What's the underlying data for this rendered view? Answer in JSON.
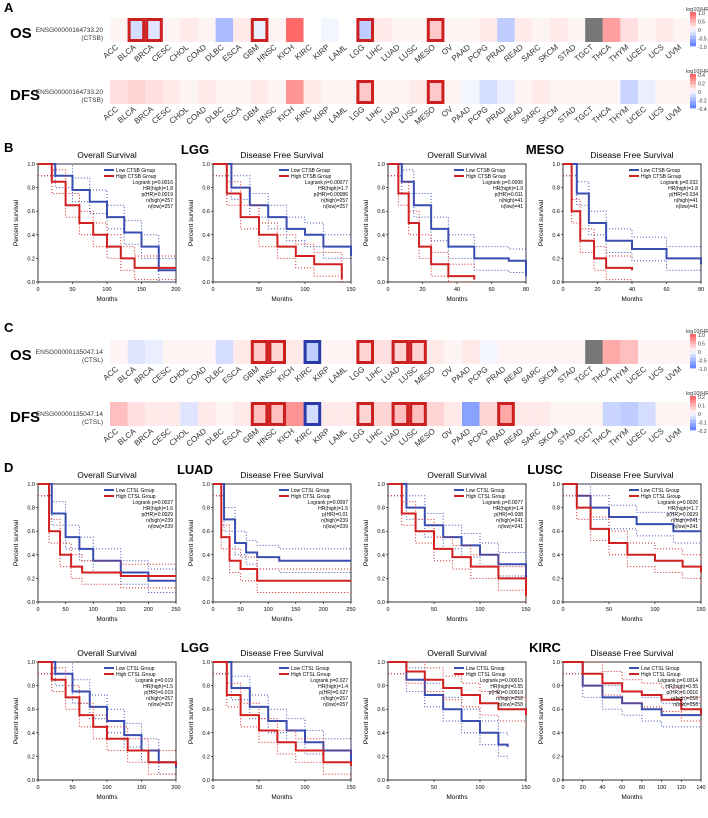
{
  "cancers": [
    "ACC",
    "BLCA",
    "BRCA",
    "CESC",
    "CHOL",
    "COAD",
    "DLBC",
    "ESCA",
    "GBM",
    "HNSC",
    "KICH",
    "KIRC",
    "KIRP",
    "LAML",
    "LGG",
    "LIHC",
    "LUAD",
    "LUSC",
    "MESO",
    "OV",
    "PAAD",
    "PCPG",
    "PRAD",
    "READ",
    "SARC",
    "SKCM",
    "STAD",
    "TGCT",
    "THCA",
    "THYM",
    "UCEC",
    "UCS",
    "UVM"
  ],
  "panels": [
    {
      "letter": "A",
      "y": 0
    },
    {
      "letter": "B",
      "y": 142
    },
    {
      "letter": "C",
      "y": 322
    },
    {
      "letter": "D",
      "y": 462
    }
  ],
  "heatmaps": [
    {
      "id": "A-OS",
      "row_label": "OS",
      "gene_id": "ENSG00000164733.20",
      "gene": "(CTSB)",
      "values": [
        0.05,
        -0.2,
        -0.15,
        0.05,
        0.1,
        0.05,
        -0.4,
        0.1,
        -0.1,
        0.05,
        0.7,
        0.0,
        -0.05,
        0.0,
        -0.3,
        0.1,
        0.05,
        0.05,
        0.25,
        0.05,
        0.05,
        0.1,
        -0.3,
        0.1,
        0.05,
        0.1,
        0.05,
        "na",
        0.45,
        0.15,
        0.05,
        0.1,
        0.05
      ],
      "bold": [
        1,
        2,
        8,
        14,
        18
      ],
      "bold_color": "#cc1f1f",
      "scale_ticks": [
        "1.0",
        "0.5",
        "0",
        "-0.5",
        "-1.0"
      ],
      "scale_title": "log10(HR)"
    },
    {
      "id": "A-DFS",
      "row_label": "DFS",
      "gene_id": "ENSG00000164733.20",
      "gene": "(CTSB)",
      "values": [
        0.15,
        0.2,
        0.15,
        0.1,
        0.05,
        0.1,
        0.05,
        0.05,
        0.1,
        0.05,
        0.5,
        0.1,
        0.05,
        0.05,
        0.25,
        0.05,
        0.05,
        0.1,
        0.25,
        0.05,
        -0.05,
        -0.2,
        -0.1,
        0.05,
        0.1,
        0.05,
        0.05,
        0.05,
        0.05,
        -0.25,
        -0.1,
        0.05,
        0.05
      ],
      "bold": [
        14,
        18
      ],
      "bold_color": "#cc1f1f",
      "scale_ticks": [
        "0.4",
        "0.2",
        "0",
        "-0.2",
        "-0.4"
      ],
      "scale_title": "log10(HR)"
    },
    {
      "id": "C-OS",
      "row_label": "OS",
      "gene_id": "ENSG00000135047.14",
      "gene": "(CTSL)",
      "values": [
        0.05,
        -0.15,
        -0.1,
        0.05,
        0.05,
        0.05,
        -0.2,
        0.1,
        0.25,
        0.2,
        0.1,
        -0.3,
        0.05,
        0.05,
        0.2,
        0.15,
        0.2,
        0.2,
        0.1,
        0.05,
        0.1,
        -0.05,
        0.05,
        0.05,
        0.05,
        0.05,
        0.05,
        "na",
        0.4,
        0.3,
        0.05,
        0.05,
        0.05
      ],
      "bold": [
        8,
        9,
        11,
        14,
        16,
        17
      ],
      "bold_color": "#cc1f1f",
      "bold_blue": [
        11
      ],
      "scale_ticks": [
        "1.0",
        "0.5",
        "0",
        "-0.5",
        "-1.0"
      ],
      "scale_title": "log10(HR)"
    },
    {
      "id": "C-DFS",
      "row_label": "DFS",
      "gene_id": "ENSG00000135047.14",
      "gene": "(CTSL)",
      "values": [
        0.3,
        0.15,
        0.1,
        0.1,
        -0.15,
        0.1,
        0.05,
        0.1,
        0.3,
        0.3,
        0.5,
        -0.2,
        0.1,
        0.1,
        0.2,
        0.2,
        0.3,
        0.3,
        0.2,
        0.1,
        -0.55,
        0.2,
        0.4,
        0.1,
        0.1,
        0.05,
        0.05,
        0.05,
        -0.25,
        -0.3,
        -0.2,
        0.05,
        0.05
      ],
      "bold": [
        8,
        9,
        11,
        14,
        16,
        17,
        22
      ],
      "bold_color": "#cc1f1f",
      "bold_blue": [
        11
      ],
      "scale_ticks": [
        "0.2",
        "0.1",
        "0",
        "-0.1",
        "-0.2"
      ],
      "scale_title": "log10(HR)"
    }
  ],
  "km_groups": [
    {
      "id": "B",
      "title": "LGG",
      "y": 150,
      "x": 10,
      "gene": "CTSB"
    },
    {
      "id": "B2",
      "title": "MESO",
      "y": 150,
      "x": 360,
      "gene": "CTSB"
    },
    {
      "id": "D1",
      "title": "LUAD",
      "y": 470,
      "x": 10,
      "gene": "CTSL"
    },
    {
      "id": "D2",
      "title": "LUSC",
      "y": 470,
      "x": 360,
      "gene": "CTSL"
    },
    {
      "id": "D3",
      "title": "LGG",
      "y": 648,
      "x": 10,
      "gene": "CTSL"
    },
    {
      "id": "D4",
      "title": "KIRC",
      "y": 648,
      "x": 360,
      "gene": "CTSL"
    }
  ],
  "km_plots": [
    {
      "group": "B",
      "subtitle": "Overall Survival",
      "legend": [
        "Low CTSB Group",
        "High CTSB Group"
      ],
      "stats": [
        "Logrank p=0.0016",
        "HR(high)=1.8",
        "p(HR)=0.0019",
        "n(high)=257",
        "n(low)=257"
      ],
      "xmax": 200,
      "xticks": [
        0,
        50,
        100,
        150,
        200
      ],
      "low": [
        [
          0,
          1
        ],
        [
          25,
          0.9
        ],
        [
          50,
          0.78
        ],
        [
          75,
          0.68
        ],
        [
          100,
          0.55
        ],
        [
          125,
          0.42
        ],
        [
          150,
          0.3
        ],
        [
          175,
          0.1
        ],
        [
          200,
          0.1
        ]
      ],
      "high": [
        [
          0,
          1
        ],
        [
          20,
          0.85
        ],
        [
          40,
          0.65
        ],
        [
          60,
          0.5
        ],
        [
          80,
          0.4
        ],
        [
          100,
          0.3
        ],
        [
          120,
          0.2
        ],
        [
          140,
          0.12
        ],
        [
          200,
          0.12
        ]
      ]
    },
    {
      "group": "B",
      "subtitle": "Disease Free Survival",
      "legend": [
        "Low CTSB Group",
        "High CTSB Group"
      ],
      "stats": [
        "Logrank p=0.00077",
        "HR(high)=1.7",
        "p(HR)=0.00086",
        "n(high)=257",
        "n(low)=257"
      ],
      "xmax": 150,
      "xticks": [
        0,
        50,
        100,
        150
      ],
      "low": [
        [
          0,
          1
        ],
        [
          20,
          0.8
        ],
        [
          40,
          0.65
        ],
        [
          60,
          0.55
        ],
        [
          80,
          0.45
        ],
        [
          100,
          0.4
        ],
        [
          120,
          0.3
        ],
        [
          150,
          0.22
        ]
      ],
      "high": [
        [
          0,
          1
        ],
        [
          15,
          0.75
        ],
        [
          30,
          0.55
        ],
        [
          50,
          0.4
        ],
        [
          70,
          0.3
        ],
        [
          90,
          0.22
        ],
        [
          110,
          0.15
        ],
        [
          140,
          0.02
        ]
      ]
    },
    {
      "group": "B2",
      "subtitle": "Overall Survival",
      "legend": [
        "Low CTSB Group",
        "High CTSB Group"
      ],
      "stats": [
        "Logrank p=0.0096",
        "HR(high)=1.9",
        "p(HR)=0.011",
        "n(high)=41",
        "n(low)=41"
      ],
      "xmax": 80,
      "xticks": [
        0,
        20,
        40,
        60,
        80
      ],
      "low": [
        [
          0,
          1
        ],
        [
          8,
          0.85
        ],
        [
          15,
          0.65
        ],
        [
          25,
          0.45
        ],
        [
          35,
          0.3
        ],
        [
          50,
          0.2
        ],
        [
          70,
          0.18
        ],
        [
          90,
          0.05
        ]
      ],
      "high": [
        [
          0,
          1
        ],
        [
          6,
          0.75
        ],
        [
          12,
          0.5
        ],
        [
          18,
          0.3
        ],
        [
          25,
          0.15
        ],
        [
          35,
          0.05
        ],
        [
          50,
          0.02
        ]
      ]
    },
    {
      "group": "B2",
      "subtitle": "Disease Free Survival",
      "legend": [
        "Low CTSB Group",
        "High CTSB Group"
      ],
      "stats": [
        "Logrank p=0.032",
        "HR(high)=1.8",
        "p(HR)=0.034",
        "n(high)=41",
        "n(low)=41"
      ],
      "xmax": 80,
      "xticks": [
        0,
        20,
        40,
        60,
        80
      ],
      "low": [
        [
          0,
          1
        ],
        [
          8,
          0.75
        ],
        [
          15,
          0.5
        ],
        [
          25,
          0.35
        ],
        [
          40,
          0.28
        ],
        [
          60,
          0.2
        ],
        [
          80,
          0.15
        ]
      ],
      "high": [
        [
          0,
          1
        ],
        [
          5,
          0.6
        ],
        [
          10,
          0.35
        ],
        [
          18,
          0.2
        ],
        [
          25,
          0.12
        ],
        [
          40,
          0.1
        ]
      ]
    },
    {
      "group": "D1",
      "subtitle": "Overall Survival",
      "legend": [
        "Low CTSL Group",
        "High CTSL Group"
      ],
      "stats": [
        "Logrank p=0.0027",
        "HR(high)=1.6",
        "p(HR)=0.0029",
        "n(high)=239",
        "n(low)=239"
      ],
      "xmax": 250,
      "xticks": [
        0,
        50,
        100,
        150,
        200,
        250
      ],
      "low": [
        [
          0,
          1
        ],
        [
          25,
          0.75
        ],
        [
          50,
          0.55
        ],
        [
          75,
          0.45
        ],
        [
          100,
          0.35
        ],
        [
          150,
          0.25
        ],
        [
          200,
          0.18
        ],
        [
          250,
          0.18
        ]
      ],
      "high": [
        [
          0,
          1
        ],
        [
          20,
          0.6
        ],
        [
          40,
          0.4
        ],
        [
          60,
          0.3
        ],
        [
          80,
          0.25
        ],
        [
          150,
          0.22
        ],
        [
          250,
          0.22
        ]
      ]
    },
    {
      "group": "D1",
      "subtitle": "Disease Free Survival",
      "legend": [
        "Low CTSL Group",
        "High CTSL Group"
      ],
      "stats": [
        "Logrank p=0.0097",
        "HR(high)=1.5",
        "p(HR)=0.01",
        "n(high)=239",
        "n(low)=239"
      ],
      "xmax": 250,
      "xticks": [
        0,
        50,
        100,
        150,
        200,
        250
      ],
      "low": [
        [
          0,
          1
        ],
        [
          20,
          0.7
        ],
        [
          40,
          0.5
        ],
        [
          60,
          0.42
        ],
        [
          80,
          0.38
        ],
        [
          120,
          0.35
        ],
        [
          250,
          0.35
        ]
      ],
      "high": [
        [
          0,
          1
        ],
        [
          15,
          0.55
        ],
        [
          30,
          0.35
        ],
        [
          50,
          0.28
        ],
        [
          80,
          0.18
        ],
        [
          250,
          0.18
        ]
      ]
    },
    {
      "group": "D2",
      "subtitle": "Overall Survival",
      "legend": [
        "Low CTSL Group",
        "High CTSL Group"
      ],
      "stats": [
        "Logrank p=0.0077",
        "HR(high)=1.4",
        "p(HR)=0.008",
        "n(high)=241",
        "n(low)=241"
      ],
      "xmax": 150,
      "xticks": [
        0,
        50,
        100,
        150
      ],
      "low": [
        [
          0,
          1
        ],
        [
          20,
          0.8
        ],
        [
          40,
          0.65
        ],
        [
          60,
          0.55
        ],
        [
          80,
          0.48
        ],
        [
          100,
          0.4
        ],
        [
          120,
          0.32
        ],
        [
          150,
          0.2
        ]
      ],
      "high": [
        [
          0,
          1
        ],
        [
          15,
          0.75
        ],
        [
          30,
          0.6
        ],
        [
          50,
          0.45
        ],
        [
          70,
          0.38
        ],
        [
          90,
          0.3
        ],
        [
          120,
          0.2
        ],
        [
          160,
          0.05
        ]
      ]
    },
    {
      "group": "D2",
      "subtitle": "Disease Free Survival",
      "legend": [
        "Low CTSL Group",
        "High CTSL Group"
      ],
      "stats": [
        "Logrank p=0.0026",
        "HR(high)=1.7",
        "p(HR)=0.0029",
        "n(high)=241",
        "n(low)=241"
      ],
      "xmax": 150,
      "xticks": [
        0,
        50,
        100,
        150
      ],
      "low": [
        [
          0,
          1
        ],
        [
          15,
          0.9
        ],
        [
          30,
          0.8
        ],
        [
          50,
          0.72
        ],
        [
          80,
          0.66
        ],
        [
          120,
          0.6
        ],
        [
          150,
          0.6
        ]
      ],
      "high": [
        [
          0,
          1
        ],
        [
          15,
          0.8
        ],
        [
          30,
          0.62
        ],
        [
          50,
          0.5
        ],
        [
          70,
          0.4
        ],
        [
          100,
          0.35
        ],
        [
          130,
          0.3
        ],
        [
          150,
          0.25
        ]
      ]
    },
    {
      "group": "D3",
      "subtitle": "Overall Survival",
      "legend": [
        "Low CTSL Group",
        "High CTSL Group"
      ],
      "stats": [
        "Logrank p=0.019",
        "HR(high)=1.5",
        "p(HR)=0.019",
        "n(high)=257",
        "n(low)=257"
      ],
      "xmax": 200,
      "xticks": [
        0,
        50,
        100,
        150,
        200
      ],
      "low": [
        [
          0,
          1
        ],
        [
          25,
          0.9
        ],
        [
          50,
          0.75
        ],
        [
          75,
          0.62
        ],
        [
          100,
          0.5
        ],
        [
          125,
          0.38
        ],
        [
          150,
          0.25
        ],
        [
          175,
          0.15
        ],
        [
          200,
          0.1
        ]
      ],
      "high": [
        [
          0,
          1
        ],
        [
          20,
          0.85
        ],
        [
          40,
          0.7
        ],
        [
          60,
          0.55
        ],
        [
          80,
          0.45
        ],
        [
          100,
          0.35
        ],
        [
          130,
          0.25
        ],
        [
          160,
          0.15
        ],
        [
          200,
          0.12
        ]
      ]
    },
    {
      "group": "D3",
      "subtitle": "Disease Free Survival",
      "legend": [
        "Low CTSL Group",
        "High CTSL Group"
      ],
      "stats": [
        "Logrank p=0.027",
        "HR(high)=1.4",
        "p(HR)=0.027",
        "n(high)=257",
        "n(low)=257"
      ],
      "xmax": 150,
      "xticks": [
        0,
        50,
        100,
        150
      ],
      "low": [
        [
          0,
          1
        ],
        [
          20,
          0.78
        ],
        [
          40,
          0.62
        ],
        [
          60,
          0.5
        ],
        [
          80,
          0.42
        ],
        [
          100,
          0.32
        ],
        [
          120,
          0.25
        ],
        [
          150,
          0.15
        ]
      ],
      "high": [
        [
          0,
          1
        ],
        [
          15,
          0.72
        ],
        [
          30,
          0.55
        ],
        [
          50,
          0.42
        ],
        [
          70,
          0.32
        ],
        [
          90,
          0.25
        ],
        [
          120,
          0.15
        ],
        [
          150,
          0.12
        ]
      ]
    },
    {
      "group": "D4",
      "subtitle": "Overall Survival",
      "legend": [
        "Low CTSL Group",
        "High CTSL Group"
      ],
      "stats": [
        "Logrank p=0.00015",
        "HR(high)=0.55",
        "p(HR)=0.00019",
        "n(high)=258",
        "n(low)=258"
      ],
      "xmax": 150,
      "xticks": [
        0,
        50,
        100,
        150
      ],
      "low": [
        [
          0,
          1
        ],
        [
          20,
          0.85
        ],
        [
          40,
          0.72
        ],
        [
          60,
          0.6
        ],
        [
          80,
          0.5
        ],
        [
          100,
          0.4
        ],
        [
          120,
          0.3
        ],
        [
          130,
          0.28
        ]
      ],
      "high": [
        [
          0,
          1
        ],
        [
          20,
          0.92
        ],
        [
          40,
          0.85
        ],
        [
          60,
          0.78
        ],
        [
          80,
          0.72
        ],
        [
          100,
          0.65
        ],
        [
          120,
          0.6
        ],
        [
          150,
          0.55
        ]
      ]
    },
    {
      "group": "D4",
      "subtitle": "Disease Free Survival",
      "legend": [
        "Low CTSL Group",
        "High CTSL Group"
      ],
      "stats": [
        "Logrank p=0.0014",
        "HR(high)=0.55",
        "p(HR)=0.0016",
        "n(high)=258",
        "n(low)=258"
      ],
      "xmax": 140,
      "xticks": [
        0,
        20,
        40,
        60,
        80,
        100,
        120,
        140
      ],
      "low": [
        [
          0,
          1
        ],
        [
          20,
          0.8
        ],
        [
          40,
          0.7
        ],
        [
          60,
          0.65
        ],
        [
          80,
          0.6
        ],
        [
          100,
          0.55
        ],
        [
          140,
          0.55
        ]
      ],
      "high": [
        [
          0,
          1
        ],
        [
          20,
          0.9
        ],
        [
          40,
          0.82
        ],
        [
          60,
          0.75
        ],
        [
          80,
          0.72
        ],
        [
          100,
          0.68
        ],
        [
          120,
          0.6
        ],
        [
          140,
          0.55
        ]
      ]
    }
  ],
  "axis": {
    "ylabel": "Percent survival",
    "xlabel": "Months",
    "yticks": [
      "0.0",
      "0.2",
      "0.4",
      "0.6",
      "0.8",
      "1.0"
    ]
  },
  "colors": {
    "low": "#3a4db0",
    "high": "#d02020",
    "bold_red": "#cc1f1f",
    "bold_blue": "#2a3aa8",
    "na": "#777777"
  }
}
